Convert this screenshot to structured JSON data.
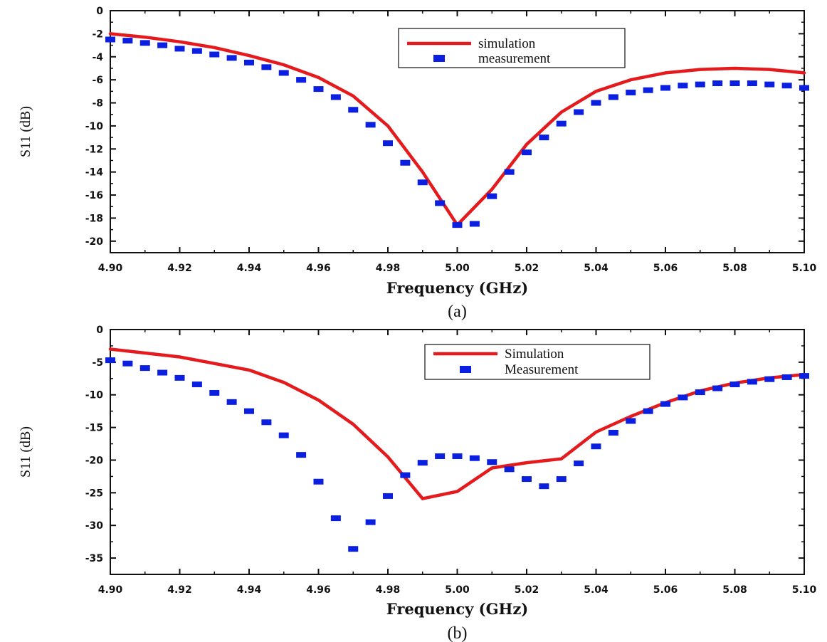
{
  "chart_data": [
    {
      "type": "line",
      "panel_label": "(a)",
      "xlabel": "Frequency (GHz)",
      "ylabel": "S11 (dB)",
      "xlim": [
        4.9,
        5.1
      ],
      "ylim": [
        -21,
        0
      ],
      "x_ticks": [
        "4.90",
        "4.92",
        "4.94",
        "4.96",
        "4.98",
        "5.00",
        "5.02",
        "5.04",
        "5.06",
        "5.08",
        "5.10"
      ],
      "y_ticks": [
        "0",
        "-2",
        "-4",
        "-6",
        "-8",
        "-10",
        "-12",
        "-14",
        "-16",
        "-18",
        "-20"
      ],
      "grid": false,
      "legend_position": "top-center",
      "series": [
        {
          "name": "simulation",
          "style": "line",
          "color": "#e41a1c",
          "x": [
            4.9,
            4.91,
            4.92,
            4.93,
            4.94,
            4.95,
            4.96,
            4.97,
            4.98,
            4.99,
            5.0,
            5.01,
            5.02,
            5.03,
            5.04,
            5.05,
            5.06,
            5.07,
            5.08,
            5.09,
            5.1
          ],
          "y": [
            -2.0,
            -2.3,
            -2.7,
            -3.2,
            -3.9,
            -4.7,
            -5.8,
            -7.4,
            -10.0,
            -14.0,
            -18.6,
            -15.5,
            -11.6,
            -8.8,
            -7.0,
            -6.0,
            -5.4,
            -5.1,
            -5.0,
            -5.1,
            -5.4
          ]
        },
        {
          "name": "measurement",
          "style": "markers",
          "color": "#0a1fe0",
          "x": [
            4.9,
            4.905,
            4.91,
            4.915,
            4.92,
            4.925,
            4.93,
            4.935,
            4.94,
            4.945,
            4.95,
            4.955,
            4.96,
            4.965,
            4.97,
            4.975,
            4.98,
            4.985,
            4.99,
            4.995,
            5.0,
            5.005,
            5.01,
            5.015,
            5.02,
            5.025,
            5.03,
            5.035,
            5.04,
            5.045,
            5.05,
            5.055,
            5.06,
            5.065,
            5.07,
            5.075,
            5.08,
            5.085,
            5.09,
            5.095,
            5.1
          ],
          "y": [
            -2.5,
            -2.6,
            -2.8,
            -3.0,
            -3.3,
            -3.5,
            -3.8,
            -4.1,
            -4.5,
            -4.9,
            -5.4,
            -6.0,
            -6.8,
            -7.5,
            -8.6,
            -9.9,
            -11.5,
            -13.2,
            -14.9,
            -16.7,
            -18.6,
            -18.5,
            -16.1,
            -14.0,
            -12.3,
            -11.0,
            -9.8,
            -8.8,
            -8.0,
            -7.5,
            -7.1,
            -6.9,
            -6.7,
            -6.5,
            -6.4,
            -6.3,
            -6.3,
            -6.3,
            -6.4,
            -6.5,
            -6.7
          ]
        }
      ]
    },
    {
      "type": "line",
      "panel_label": "(b)",
      "xlabel": "Frequency (GHz)",
      "ylabel": "S11 (dB)",
      "xlim": [
        4.9,
        5.1
      ],
      "ylim": [
        -37.5,
        0
      ],
      "x_ticks": [
        "4.90",
        "4.92",
        "4.94",
        "4.96",
        "4.98",
        "5.00",
        "5.02",
        "5.04",
        "5.06",
        "5.08",
        "5.10"
      ],
      "y_ticks": [
        "0",
        "-5",
        "-10",
        "-15",
        "-20",
        "-25",
        "-30",
        "-35"
      ],
      "grid": false,
      "legend_position": "top-right",
      "series": [
        {
          "name": "Simulation",
          "style": "line",
          "color": "#e41a1c",
          "x": [
            4.9,
            4.92,
            4.94,
            4.95,
            4.96,
            4.97,
            4.98,
            4.99,
            5.0,
            5.01,
            5.02,
            5.03,
            5.04,
            5.05,
            5.06,
            5.07,
            5.08,
            5.09,
            5.1
          ],
          "y": [
            -3.0,
            -4.2,
            -6.2,
            -8.1,
            -10.8,
            -14.5,
            -19.5,
            -25.9,
            -24.8,
            -21.2,
            -20.4,
            -19.8,
            -15.7,
            -13.3,
            -11.2,
            -9.4,
            -8.2,
            -7.4,
            -6.9
          ]
        },
        {
          "name": "Measurement",
          "style": "markers",
          "color": "#0a1fe0",
          "x": [
            4.9,
            4.905,
            4.91,
            4.915,
            4.92,
            4.925,
            4.93,
            4.935,
            4.94,
            4.945,
            4.95,
            4.955,
            4.96,
            4.965,
            4.97,
            4.975,
            4.98,
            4.985,
            4.99,
            4.995,
            5.0,
            5.005,
            5.01,
            5.015,
            5.02,
            5.025,
            5.03,
            5.035,
            5.04,
            5.045,
            5.05,
            5.055,
            5.06,
            5.065,
            5.07,
            5.075,
            5.08,
            5.085,
            5.09,
            5.095,
            5.1
          ],
          "y": [
            -4.7,
            -5.2,
            -5.9,
            -6.6,
            -7.4,
            -8.4,
            -9.7,
            -11.1,
            -12.5,
            -14.2,
            -16.2,
            -19.2,
            -23.3,
            -28.9,
            -33.6,
            -29.5,
            -25.5,
            -22.3,
            -20.4,
            -19.4,
            -19.4,
            -19.7,
            -20.3,
            -21.4,
            -22.9,
            -24.0,
            -22.9,
            -20.5,
            -17.9,
            -15.8,
            -14.0,
            -12.5,
            -11.4,
            -10.4,
            -9.6,
            -9.0,
            -8.4,
            -8.0,
            -7.6,
            -7.3,
            -7.1
          ]
        }
      ]
    }
  ]
}
